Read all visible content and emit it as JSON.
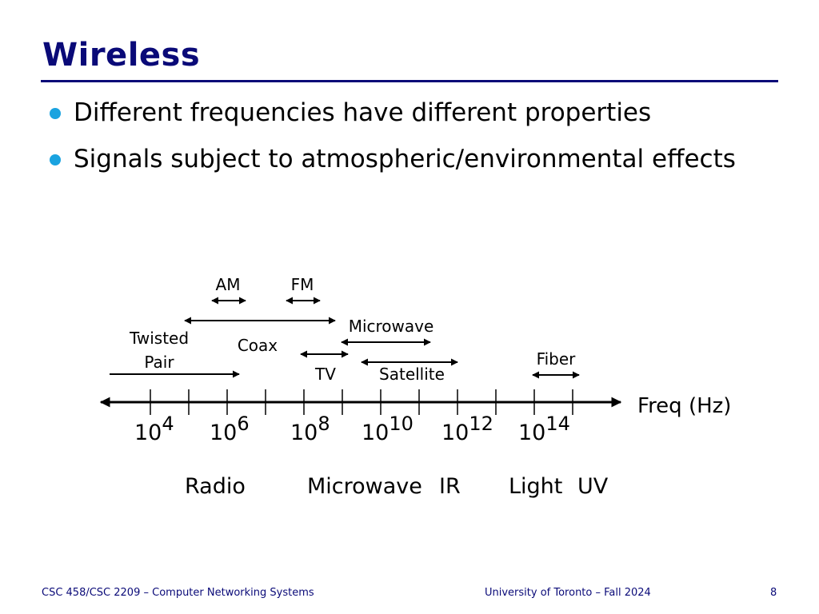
{
  "slide": {
    "title": "Wireless",
    "bullets": [
      "Different frequencies have different properties",
      "Signals subject to atmospheric/environmental effects"
    ]
  },
  "diagram": {
    "axis_label": "Freq (Hz)",
    "tick_labels": [
      {
        "base": "10",
        "exp": "4"
      },
      {
        "base": "10",
        "exp": "6"
      },
      {
        "base": "10",
        "exp": "8"
      },
      {
        "base": "10",
        "exp": "10"
      },
      {
        "base": "10",
        "exp": "12"
      },
      {
        "base": "10",
        "exp": "14"
      }
    ],
    "media": {
      "am": "AM",
      "fm": "FM",
      "twisted": "Twisted",
      "pair": "Pair",
      "coax": "Coax",
      "microwave": "Microwave",
      "tv": "TV",
      "satellite": "Satellite",
      "fiber": "Fiber"
    },
    "bands": {
      "radio": "Radio",
      "microwave": "Microwave",
      "ir": "IR",
      "light": "Light",
      "uv": "UV"
    }
  },
  "footer": {
    "course": "CSC 458/CSC 2209 – Computer Networking Systems",
    "institution": "University of Toronto – Fall 2024",
    "page": "8"
  }
}
